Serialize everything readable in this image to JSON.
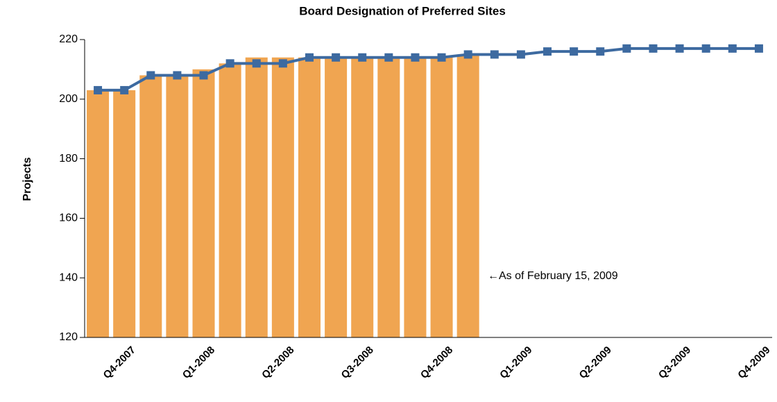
{
  "chart_data": {
    "type": "bar_line",
    "title": "Board Designation of Preferred Sites",
    "y_label": "Projects",
    "annotation": "←As of February 15, 2009",
    "categories": [
      null,
      "Q4-2007",
      null,
      null,
      "Q1-2008",
      null,
      null,
      "Q2-2008",
      null,
      null,
      "Q3-2008",
      null,
      null,
      "Q4-2008",
      null,
      null,
      "Q1-2009",
      null,
      null,
      "Q2-2009",
      null,
      null,
      "Q3-2009",
      null,
      null,
      "Q4-2009"
    ],
    "series": [
      {
        "type": "bar",
        "color": "#f0a551",
        "values": [
          203,
          203,
          208,
          208,
          210,
          212,
          214,
          214,
          214,
          214,
          214,
          214,
          214,
          214,
          215,
          null,
          null,
          null,
          null,
          null,
          null,
          null,
          null,
          null,
          null,
          null
        ]
      },
      {
        "type": "line",
        "color": "#3d6aa0",
        "values": [
          203,
          203,
          208,
          208,
          208,
          212,
          212,
          212,
          214,
          214,
          214,
          214,
          214,
          214,
          215,
          215,
          215,
          216,
          216,
          216,
          217,
          217,
          217,
          217,
          217,
          217
        ]
      }
    ],
    "ylim": [
      120,
      220
    ],
    "yticks": [
      120,
      140,
      160,
      180,
      200,
      220
    ]
  }
}
